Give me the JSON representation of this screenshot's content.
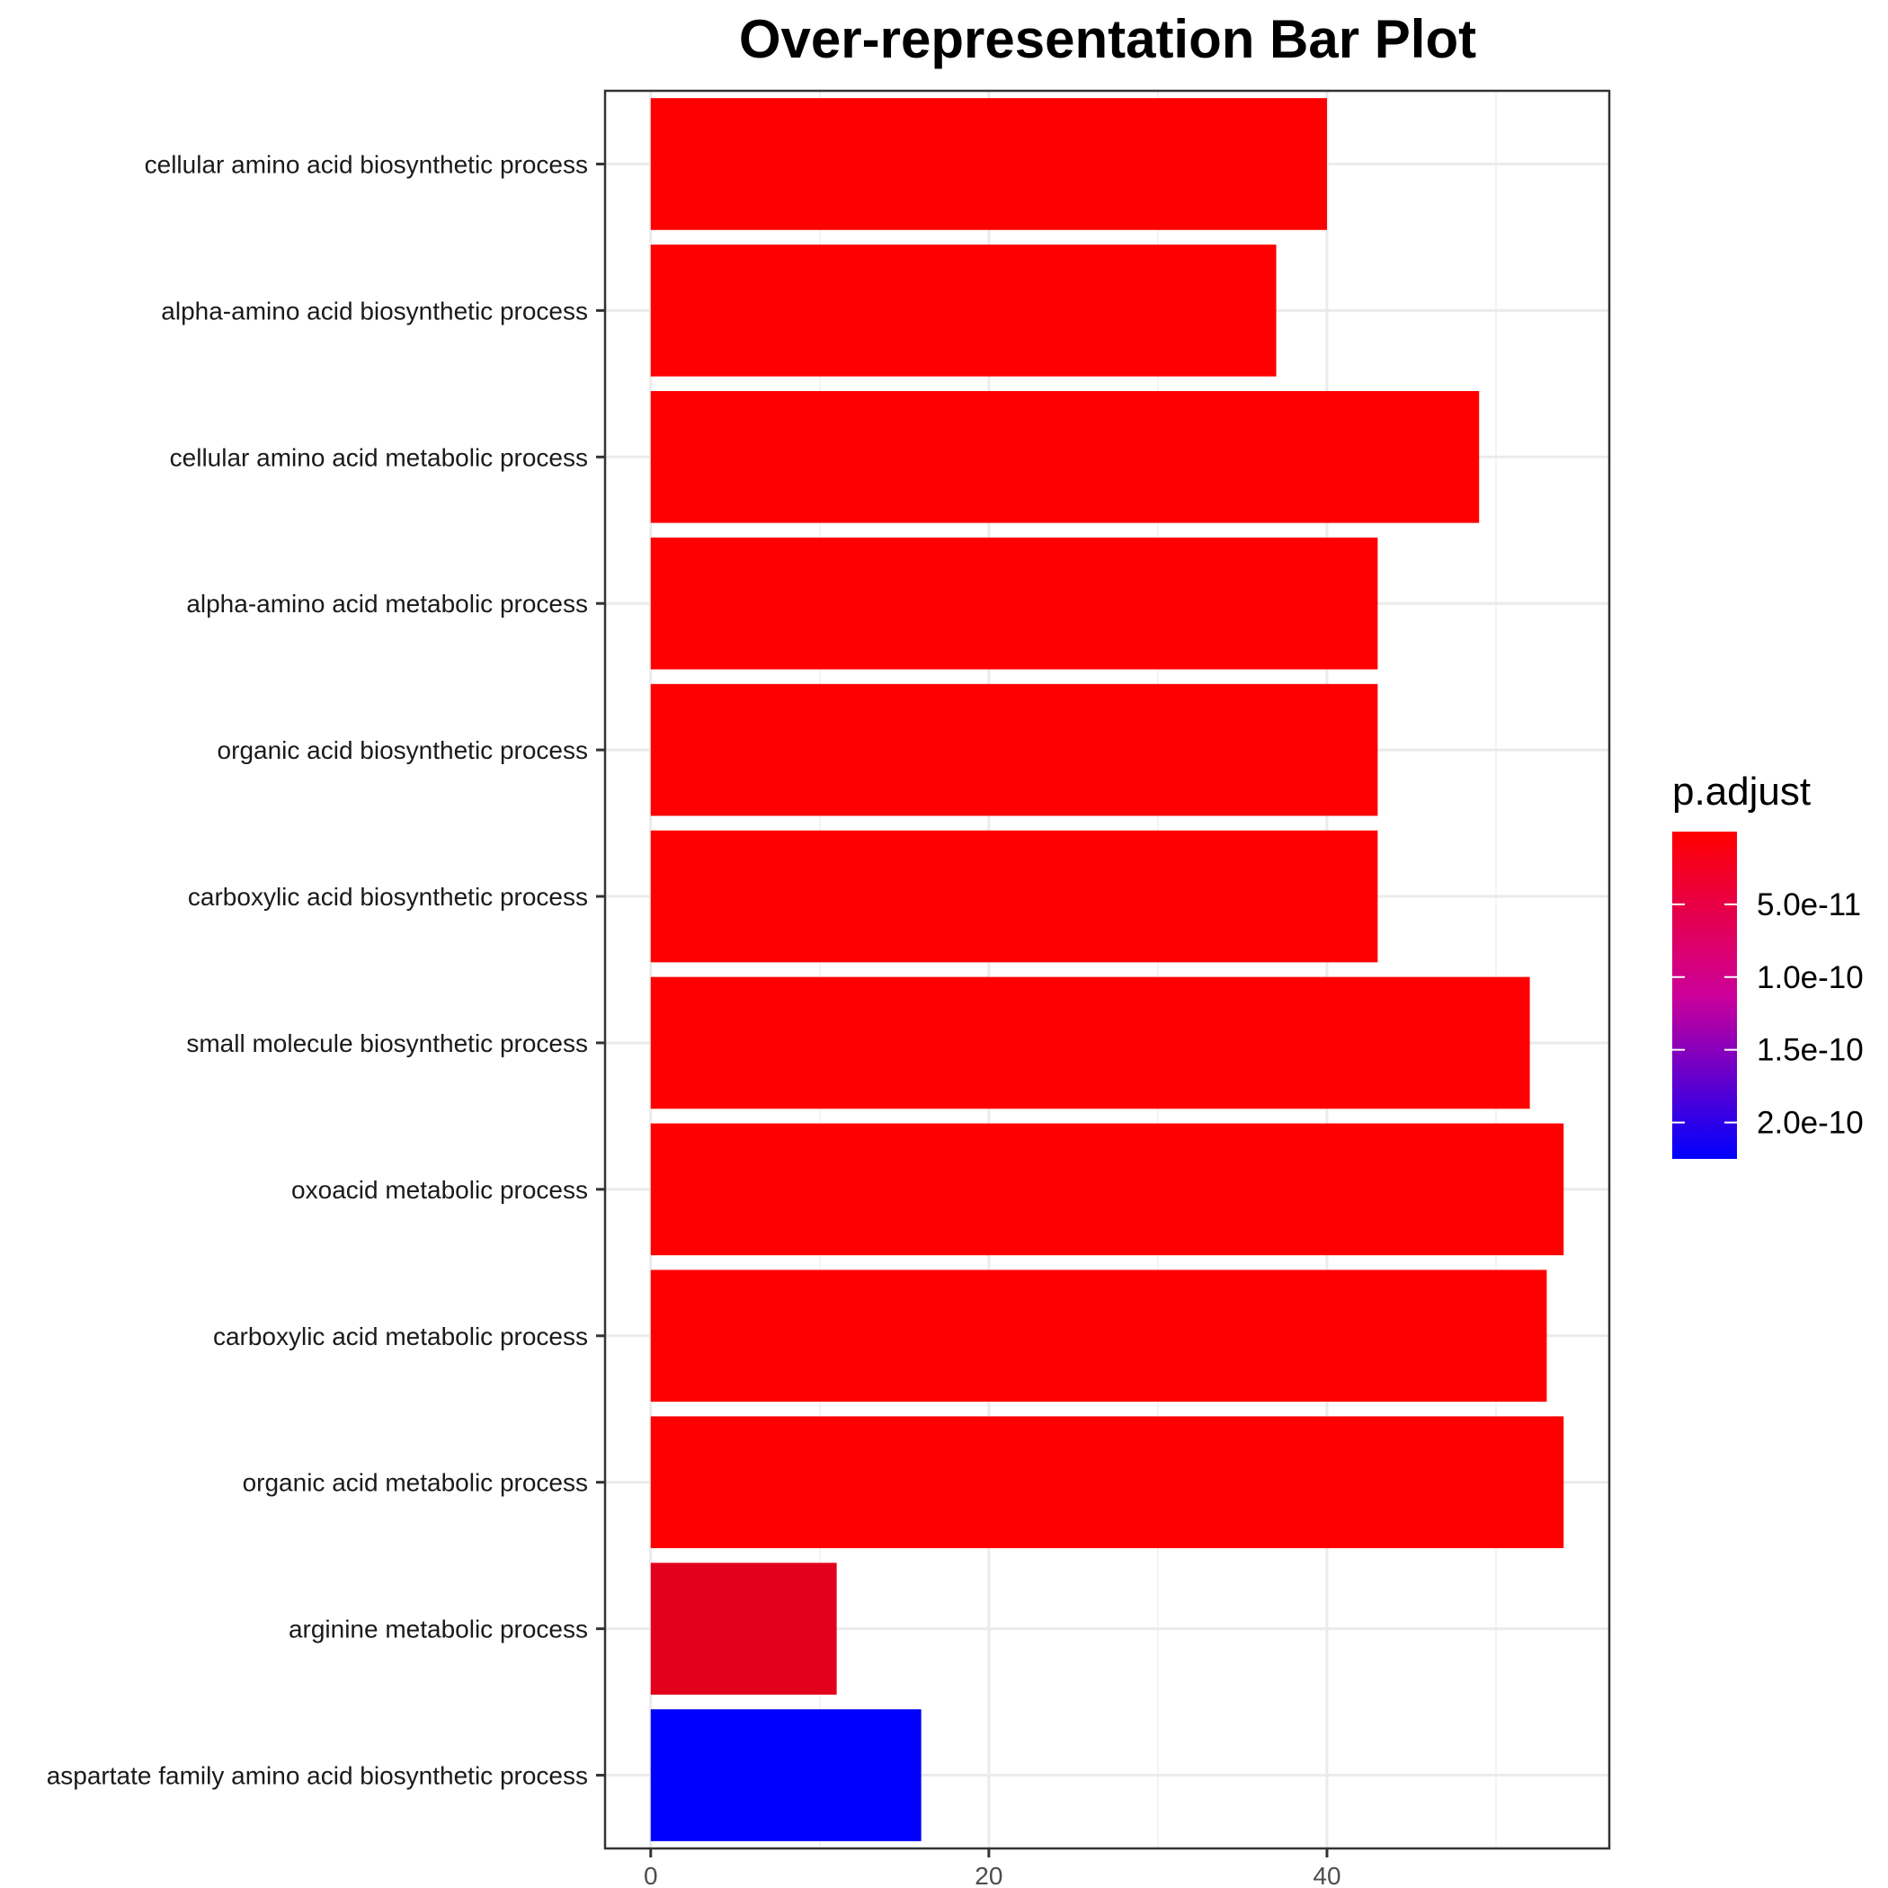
{
  "chart_data": {
    "type": "bar",
    "orientation": "horizontal",
    "title": "Over-representation Bar Plot",
    "xlabel": "",
    "ylabel": "",
    "xlim": [
      -2.7,
      56.7
    ],
    "x_ticks": [
      0,
      20,
      40
    ],
    "categories": [
      "cellular amino acid biosynthetic process",
      "alpha-amino acid biosynthetic process",
      "cellular amino acid metabolic process",
      "alpha-amino acid metabolic process",
      "organic acid biosynthetic process",
      "carboxylic acid biosynthetic process",
      "small molecule biosynthetic process",
      "oxoacid metabolic process",
      "carboxylic acid metabolic process",
      "organic acid metabolic process",
      "arginine metabolic process",
      "aspartate family amino acid biosynthetic process"
    ],
    "values": [
      40,
      37,
      49,
      43,
      43,
      43,
      52,
      54,
      53,
      54,
      11,
      16
    ],
    "p_adjust": [
      1e-13,
      1e-12,
      1e-14,
      3e-13,
      3e-13,
      3e-13,
      1e-14,
      1e-14,
      1e-14,
      1e-14,
      2.5e-11,
      2.25e-10
    ],
    "grid": true,
    "legend": {
      "title": "p.adjust",
      "placement": "right",
      "low_color": "#FF0000",
      "high_color": "#0000FF",
      "range": [
        0,
        2.25e-10
      ],
      "ticks": [
        {
          "value": 5e-11,
          "label": "5.0e-11"
        },
        {
          "value": 1e-10,
          "label": "1.0e-10"
        },
        {
          "value": 1.5e-10,
          "label": "1.5e-10"
        },
        {
          "value": 2e-10,
          "label": "2.0e-10"
        }
      ]
    }
  }
}
